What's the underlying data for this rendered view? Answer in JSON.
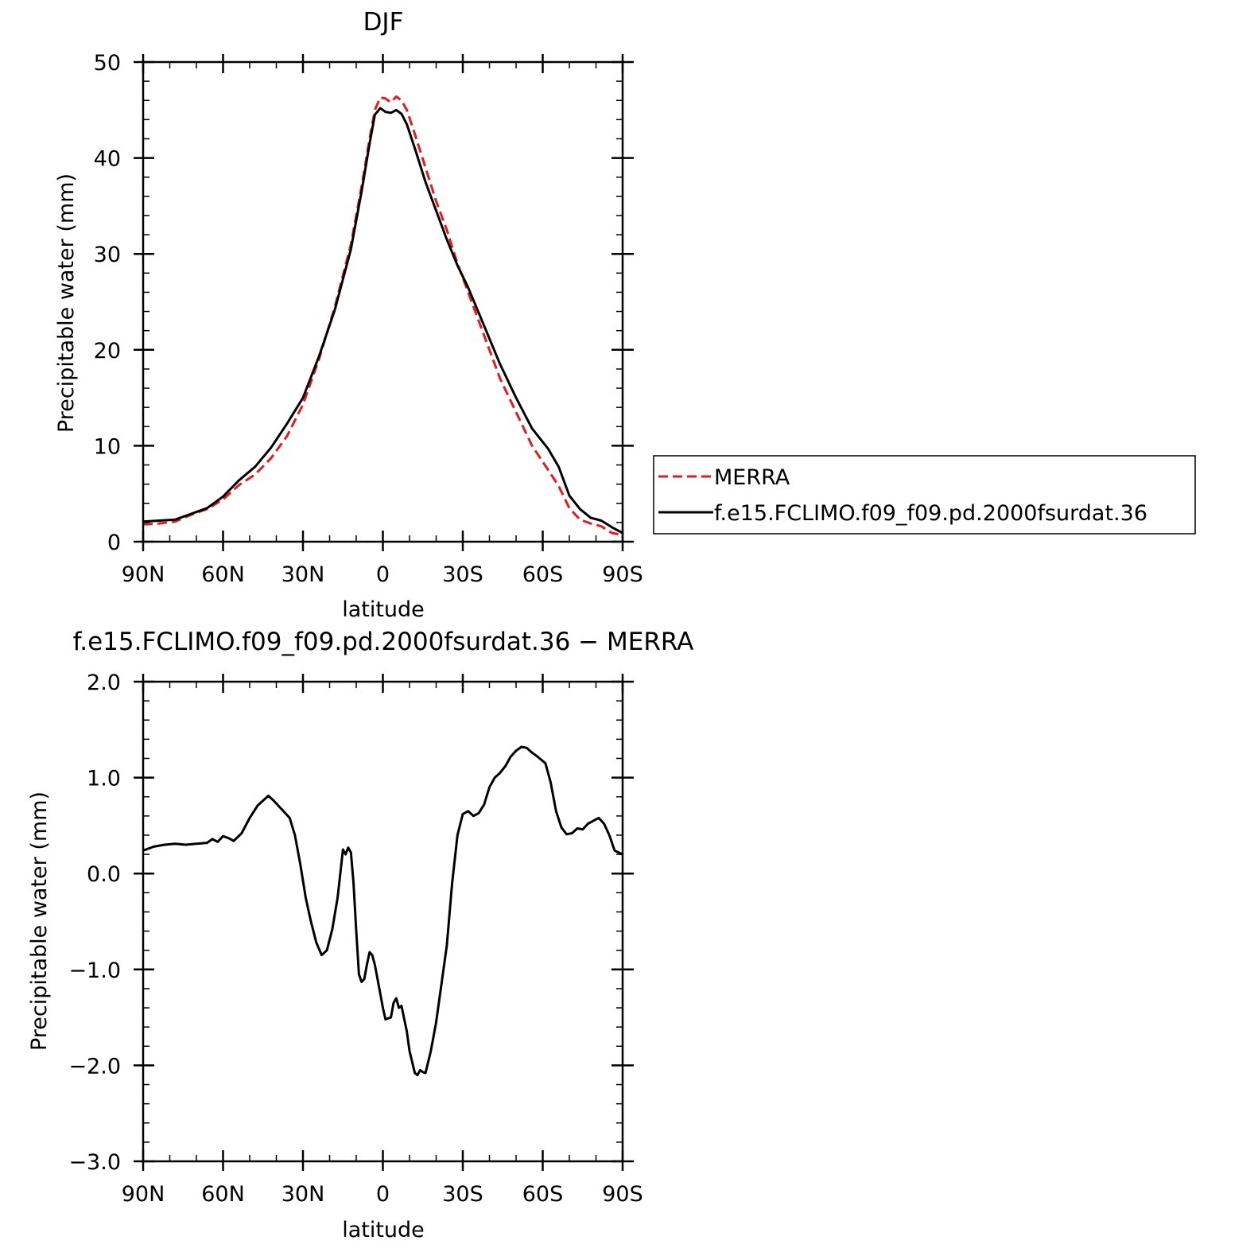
{
  "chart_data": [
    {
      "type": "line",
      "title": "DJF",
      "xlabel": "latitude",
      "ylabel": "Precipitable water (mm)",
      "xlim": [
        90,
        -90
      ],
      "ylim": [
        0,
        50
      ],
      "y_ticks": [
        0,
        10,
        20,
        30,
        40,
        50
      ],
      "y_tick_labels": [
        "0",
        "10",
        "20",
        "30",
        "40",
        "50"
      ],
      "x_ticks": [
        90,
        60,
        30,
        0,
        -30,
        -60,
        -90
      ],
      "x_tick_labels": [
        "90N",
        "60N",
        "30N",
        "0",
        "30S",
        "60S",
        "90S"
      ],
      "grid": false,
      "legend_position": "right",
      "series": [
        {
          "name": "MERRA",
          "color": "#e41a1c",
          "dash": "dashed",
          "points": [
            [
              90,
              1.8
            ],
            [
              84,
              1.9
            ],
            [
              78,
              2.1
            ],
            [
              72,
              2.8
            ],
            [
              66,
              3.4
            ],
            [
              60,
              4.4
            ],
            [
              54,
              5.9
            ],
            [
              48,
              7.0
            ],
            [
              42,
              8.7
            ],
            [
              36,
              11.0
            ],
            [
              30,
              14.3
            ],
            [
              24,
              19.0
            ],
            [
              18,
              24.5
            ],
            [
              12,
              31.0
            ],
            [
              8,
              37.0
            ],
            [
              5,
              42.0
            ],
            [
              3,
              45.0
            ],
            [
              1,
              46.3
            ],
            [
              -1,
              46.2
            ],
            [
              -3,
              45.8
            ],
            [
              -5,
              46.4
            ],
            [
              -7,
              46.0
            ],
            [
              -9,
              45.0
            ],
            [
              -12,
              42.5
            ],
            [
              -16,
              39.0
            ],
            [
              -20,
              35.5
            ],
            [
              -24,
              32.5
            ],
            [
              -28,
              29.0
            ],
            [
              -32,
              26.0
            ],
            [
              -38,
              21.5
            ],
            [
              -44,
              17.0
            ],
            [
              -50,
              13.5
            ],
            [
              -56,
              10.0
            ],
            [
              -62,
              7.5
            ],
            [
              -66,
              5.8
            ],
            [
              -70,
              3.5
            ],
            [
              -74,
              2.3
            ],
            [
              -78,
              1.9
            ],
            [
              -82,
              1.6
            ],
            [
              -86,
              0.9
            ],
            [
              -90,
              0.7
            ]
          ]
        },
        {
          "name": "f.e15.FCLIMO.f09_f09.pd.2000fsurdat.36",
          "color": "#000000",
          "dash": "solid",
          "points": [
            [
              90,
              2.1
            ],
            [
              84,
              2.2
            ],
            [
              78,
              2.3
            ],
            [
              72,
              2.9
            ],
            [
              66,
              3.5
            ],
            [
              60,
              4.7
            ],
            [
              54,
              6.4
            ],
            [
              48,
              7.8
            ],
            [
              42,
              9.8
            ],
            [
              36,
              12.3
            ],
            [
              30,
              15.0
            ],
            [
              24,
              19.3
            ],
            [
              18,
              24.2
            ],
            [
              12,
              30.5
            ],
            [
              8,
              36.5
            ],
            [
              5,
              41.5
            ],
            [
              3,
              44.5
            ],
            [
              1,
              45.2
            ],
            [
              -1,
              44.8
            ],
            [
              -3,
              44.7
            ],
            [
              -5,
              45.0
            ],
            [
              -7,
              44.6
            ],
            [
              -9,
              43.5
            ],
            [
              -12,
              41.0
            ],
            [
              -16,
              37.5
            ],
            [
              -20,
              34.5
            ],
            [
              -24,
              31.5
            ],
            [
              -28,
              28.8
            ],
            [
              -32,
              26.5
            ],
            [
              -38,
              22.5
            ],
            [
              -44,
              18.5
            ],
            [
              -50,
              15.0
            ],
            [
              -56,
              11.8
            ],
            [
              -62,
              9.7
            ],
            [
              -66,
              7.8
            ],
            [
              -70,
              4.8
            ],
            [
              -74,
              3.4
            ],
            [
              -78,
              2.5
            ],
            [
              -82,
              2.2
            ],
            [
              -86,
              1.5
            ],
            [
              -90,
              0.9
            ]
          ]
        }
      ]
    },
    {
      "type": "line",
      "title": "f.e15.FCLIMO.f09_f09.pd.2000fsurdat.36 − MERRA",
      "xlabel": "latitude",
      "ylabel": "Precipitable water (mm)",
      "xlim": [
        90,
        -90
      ],
      "ylim": [
        -3,
        2
      ],
      "y_ticks": [
        -3,
        -2,
        -1,
        0,
        1,
        2
      ],
      "y_tick_labels": [
        "−3.0",
        "−2.0",
        "−1.0",
        "0.0",
        "1.0",
        "2.0"
      ],
      "x_ticks": [
        90,
        60,
        30,
        0,
        -30,
        -60,
        -90
      ],
      "x_tick_labels": [
        "90N",
        "60N",
        "30N",
        "0",
        "30S",
        "60S",
        "90S"
      ],
      "grid": false,
      "series": [
        {
          "color": "#000000",
          "dash": "solid",
          "points": [
            [
              90,
              0.24
            ],
            [
              86,
              0.28
            ],
            [
              82,
              0.3
            ],
            [
              78,
              0.31
            ],
            [
              74,
              0.3
            ],
            [
              70,
              0.31
            ],
            [
              66,
              0.32
            ],
            [
              64,
              0.36
            ],
            [
              62,
              0.33
            ],
            [
              60,
              0.39
            ],
            [
              58,
              0.37
            ],
            [
              56,
              0.34
            ],
            [
              53,
              0.42
            ],
            [
              50,
              0.58
            ],
            [
              47,
              0.71
            ],
            [
              45,
              0.76
            ],
            [
              43,
              0.81
            ],
            [
              41,
              0.76
            ],
            [
              39,
              0.7
            ],
            [
              37,
              0.64
            ],
            [
              35,
              0.58
            ],
            [
              33,
              0.4
            ],
            [
              31,
              0.1
            ],
            [
              29,
              -0.25
            ],
            [
              27,
              -0.5
            ],
            [
              25,
              -0.72
            ],
            [
              23,
              -0.85
            ],
            [
              21,
              -0.8
            ],
            [
              19,
              -0.58
            ],
            [
              17,
              -0.25
            ],
            [
              15,
              0.25
            ],
            [
              14,
              0.2
            ],
            [
              13,
              0.27
            ],
            [
              12,
              0.22
            ],
            [
              11,
              -0.1
            ],
            [
              10,
              -0.6
            ],
            [
              9,
              -1.05
            ],
            [
              8,
              -1.13
            ],
            [
              7,
              -1.1
            ],
            [
              6,
              -0.95
            ],
            [
              5,
              -0.82
            ],
            [
              4,
              -0.85
            ],
            [
              3,
              -0.95
            ],
            [
              2,
              -1.1
            ],
            [
              1,
              -1.25
            ],
            [
              0,
              -1.4
            ],
            [
              -1,
              -1.52
            ],
            [
              -3,
              -1.5
            ],
            [
              -4,
              -1.35
            ],
            [
              -5,
              -1.3
            ],
            [
              -6,
              -1.4
            ],
            [
              -7,
              -1.38
            ],
            [
              -9,
              -1.65
            ],
            [
              -10,
              -1.85
            ],
            [
              -12,
              -2.08
            ],
            [
              -13,
              -2.1
            ],
            [
              -14,
              -2.05
            ],
            [
              -15,
              -2.07
            ],
            [
              -16,
              -2.08
            ],
            [
              -18,
              -1.85
            ],
            [
              -20,
              -1.55
            ],
            [
              -22,
              -1.15
            ],
            [
              -24,
              -0.75
            ],
            [
              -26,
              -0.1
            ],
            [
              -28,
              0.4
            ],
            [
              -30,
              0.62
            ],
            [
              -32,
              0.65
            ],
            [
              -34,
              0.6
            ],
            [
              -36,
              0.63
            ],
            [
              -38,
              0.72
            ],
            [
              -40,
              0.9
            ],
            [
              -42,
              1.0
            ],
            [
              -44,
              1.05
            ],
            [
              -46,
              1.12
            ],
            [
              -48,
              1.22
            ],
            [
              -50,
              1.28
            ],
            [
              -52,
              1.32
            ],
            [
              -54,
              1.31
            ],
            [
              -56,
              1.26
            ],
            [
              -58,
              1.22
            ],
            [
              -61,
              1.15
            ],
            [
              -63,
              0.95
            ],
            [
              -65,
              0.65
            ],
            [
              -67,
              0.48
            ],
            [
              -69,
              0.41
            ],
            [
              -71,
              0.42
            ],
            [
              -73,
              0.47
            ],
            [
              -75,
              0.46
            ],
            [
              -77,
              0.52
            ],
            [
              -79,
              0.55
            ],
            [
              -81,
              0.58
            ],
            [
              -83,
              0.52
            ],
            [
              -85,
              0.4
            ],
            [
              -87,
              0.24
            ],
            [
              -90,
              0.2
            ]
          ]
        }
      ]
    }
  ]
}
